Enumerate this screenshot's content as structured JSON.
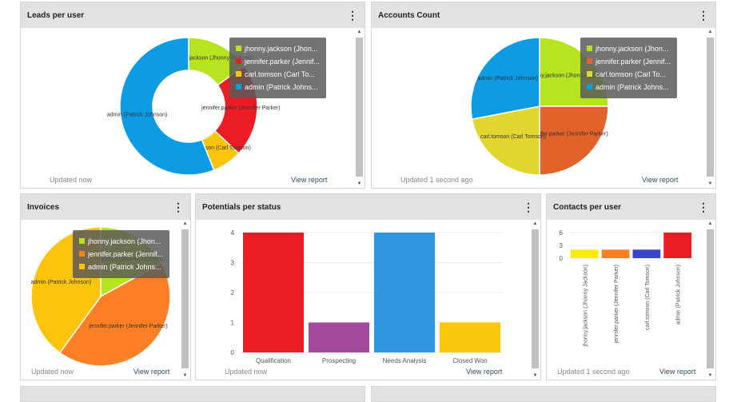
{
  "panels": {
    "leads": {
      "title": "Leads per user",
      "updated": "Updated now",
      "view": "View report"
    },
    "accounts": {
      "title": "Accounts Count",
      "updated": "Updated 1 second ago",
      "view": "View report"
    },
    "invoices": {
      "title": "Invoices",
      "updated": "Updated now",
      "view": "View report"
    },
    "potentials": {
      "title": "Potentials per status",
      "updated": "Updated now",
      "view": "View report"
    },
    "contacts": {
      "title": "Contacts per user",
      "updated": "Updated 1 second ago",
      "view": "View report"
    }
  },
  "chart_data": [
    {
      "id": "leads",
      "type": "pie",
      "donut": true,
      "labels": [
        "jhonny.jackson (Jhonny Jackson)",
        "jennifer.parker (Jennifer Parker)",
        "carl.tomson (Carl Tomson)",
        "admin (Patrick Johnson)"
      ],
      "legend": [
        "jhonny.jackson (Jhon...",
        "jennifer.parker (Jennif...",
        "carl.tomson (Carl To...",
        "admin (Patrick Johns..."
      ],
      "values": [
        15,
        22,
        7,
        56
      ],
      "colors": [
        "#b8e31f",
        "#ec1c24",
        "#fcc40c",
        "#0d9be4"
      ],
      "legend_placement": "top-right"
    },
    {
      "id": "accounts",
      "type": "pie",
      "labels": [
        "jhonny.jackson (Jhonny Jackson)",
        "jennifer.parker (Jennifer Parker)",
        "carl.tomson (Carl Tomson)",
        "admin (Patrick Johnson)"
      ],
      "legend": [
        "jhonny.jackson (Jhon...",
        "jennifer.parker (Jennif...",
        "carl.tomson (Carl To...",
        "admin (Patrick Johns..."
      ],
      "values": [
        25,
        25,
        22,
        28
      ],
      "colors": [
        "#b8e31f",
        "#e2622a",
        "#e1d62e",
        "#0d9be4"
      ],
      "legend_placement": "top-right"
    },
    {
      "id": "invoices",
      "type": "pie",
      "labels": [
        "jhonny.jackson (Jhonny Jackson)",
        "jennifer.parker (Jennifer Parker)",
        "admin (Patrick Johnson)"
      ],
      "legend": [
        "jhonny.jackson (Jhon...",
        "jennifer.parker (Jennif...",
        "admin (Patrick Johns..."
      ],
      "values": [
        17,
        43,
        40
      ],
      "colors": [
        "#b8e31f",
        "#fd7f24",
        "#fcc40c"
      ],
      "legend_placement": "top-right"
    },
    {
      "id": "potentials",
      "type": "bar",
      "categories": [
        "Qualification",
        "Prospecting",
        "Needs Analysis",
        "Closed Won"
      ],
      "values": [
        4,
        1,
        4,
        1
      ],
      "colors": [
        "#ec1c24",
        "#a24a9e",
        "#2f96e0",
        "#fcc80c"
      ],
      "yticks": [
        "0",
        "1",
        "2",
        "3",
        "4"
      ],
      "ylim": [
        0,
        4
      ],
      "grid": true
    },
    {
      "id": "contacts",
      "type": "bar",
      "categories": [
        "jhonny.jackson (Jhonny Jackson)",
        "jennifer.parker (Jennifer Parker)",
        "carl.tomson (Carl Tomson)",
        "admin (Patrick Johnson)"
      ],
      "values": [
        2,
        2,
        2,
        6
      ],
      "colors": [
        "#fbec08",
        "#fd7f24",
        "#3b46c6",
        "#ec1c24"
      ],
      "yticks": [
        "0",
        "3",
        "6"
      ],
      "ylim": [
        0,
        6
      ],
      "grid": true
    }
  ]
}
